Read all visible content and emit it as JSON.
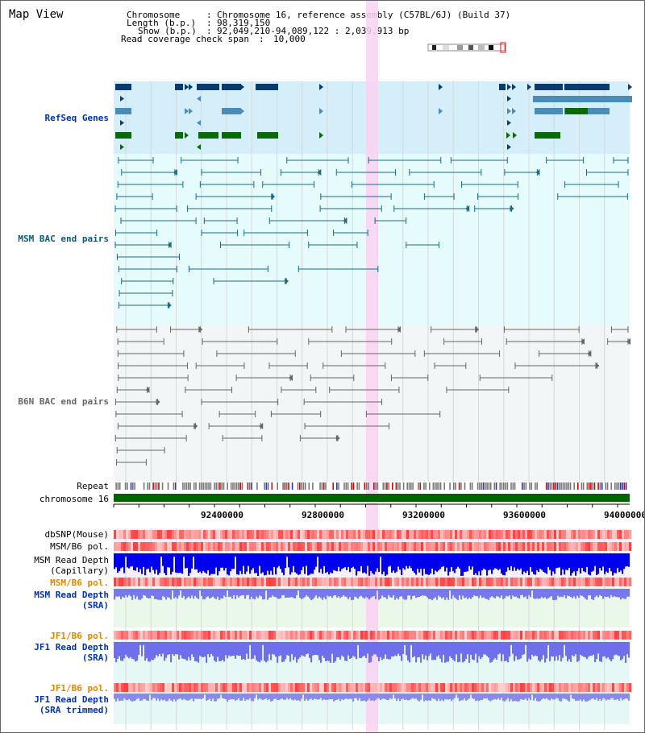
{
  "header": {
    "title": "Map View",
    "chromosome_label": "Chromosome",
    "chromosome_value": "Chromosome 16, reference assembly (C57BL/6J) (Build 37)",
    "length_label": "Length (b.p.)",
    "length_value": "98,319,150",
    "show_label": "Show (b.p.)",
    "show_value": "92,049,210-94,089,122 : 2,039,913 bp",
    "coverage_label": "Read coverage check span",
    "coverage_value": "10,000"
  },
  "tracks": {
    "refseq": "RefSeq Genes",
    "msm_bac": "MSM BAC end pairs",
    "b6n_bac": "B6N BAC end pairs",
    "repeat": "Repeat",
    "chromosome": "chromosome 16",
    "dbsnp": "dbSNP(Mouse)",
    "msm_b6_pol_1": "MSM/B6 pol.",
    "msm_depth_cap_1": "MSM Read Depth",
    "msm_depth_cap_2": "(Capillary)",
    "msm_b6_pol_2": "MSM/B6 pol.",
    "msm_depth_sra_1": "MSM Read Depth",
    "msm_depth_sra_2": "(SRA)",
    "jf1_b6_pol_1": "JF1/B6 pol.",
    "jf1_depth_sra_1": "JF1 Read Depth",
    "jf1_depth_sra_2": "(SRA)",
    "jf1_b6_pol_2": "JF1/B6 pol.",
    "jf1_depth_trim_1": "JF1 Read Depth",
    "jf1_depth_trim_2": "(SRA trimmed)"
  },
  "axis": {
    "ticks": [
      "92400000",
      "92800000",
      "93200000",
      "93600000",
      "94000000"
    ]
  },
  "colors": {
    "refseq_bg": "#d4eefa",
    "bac_bg": "#e6fbfb",
    "b6n_bg": "#f3f6f6",
    "highlight": "#f9d2f1",
    "refseq_dark": "#0b3a6e",
    "refseq_mid": "#4a8cb8",
    "refseq_green": "#0a6a0a",
    "msm_bac": "#1a6a8a",
    "b6n_bac": "#666666",
    "chromosome_bar": "#006400",
    "label_blue": "#0033aa",
    "label_orange": "#dd8800",
    "label_msm": "#0a5a7a"
  }
}
